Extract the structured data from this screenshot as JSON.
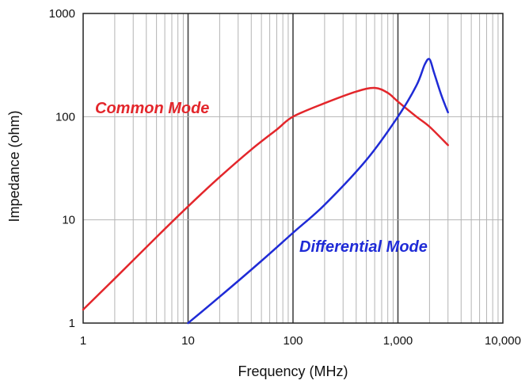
{
  "chart_data": {
    "type": "line",
    "xlabel": "Frequency (MHz)",
    "ylabel": "Impedance (ohm)",
    "x_scale": "log",
    "y_scale": "log",
    "xlim": [
      1,
      10000
    ],
    "ylim": [
      1,
      1000
    ],
    "x_tick_labels": [
      "1",
      "10",
      "100",
      "1,000",
      "10,000"
    ],
    "y_tick_labels": [
      "1",
      "10",
      "100",
      "1000"
    ],
    "grid": true,
    "annotations": [
      {
        "text": "Common Mode",
        "color": "#e3262b"
      },
      {
        "text": "Differential Mode",
        "color": "#1f2bd6"
      }
    ],
    "series": [
      {
        "name": "Common Mode",
        "color": "#e3262b",
        "x": [
          1,
          2,
          5,
          10,
          20,
          40,
          70,
          100,
          200,
          400,
          600,
          800,
          1000,
          1500,
          2000,
          3000
        ],
        "y": [
          1.35,
          2.7,
          6.8,
          13.5,
          26,
          48,
          75,
          100,
          135,
          175,
          190,
          170,
          140,
          100,
          80,
          53
        ]
      },
      {
        "name": "Differential Mode",
        "color": "#1f2bd6",
        "x": [
          10,
          20,
          50,
          100,
          200,
          500,
          1000,
          1500,
          1800,
          2000,
          2200,
          2600,
          3000
        ],
        "y": [
          1,
          1.8,
          4,
          7.5,
          14,
          38,
          100,
          200,
          320,
          360,
          270,
          160,
          110
        ]
      }
    ]
  }
}
